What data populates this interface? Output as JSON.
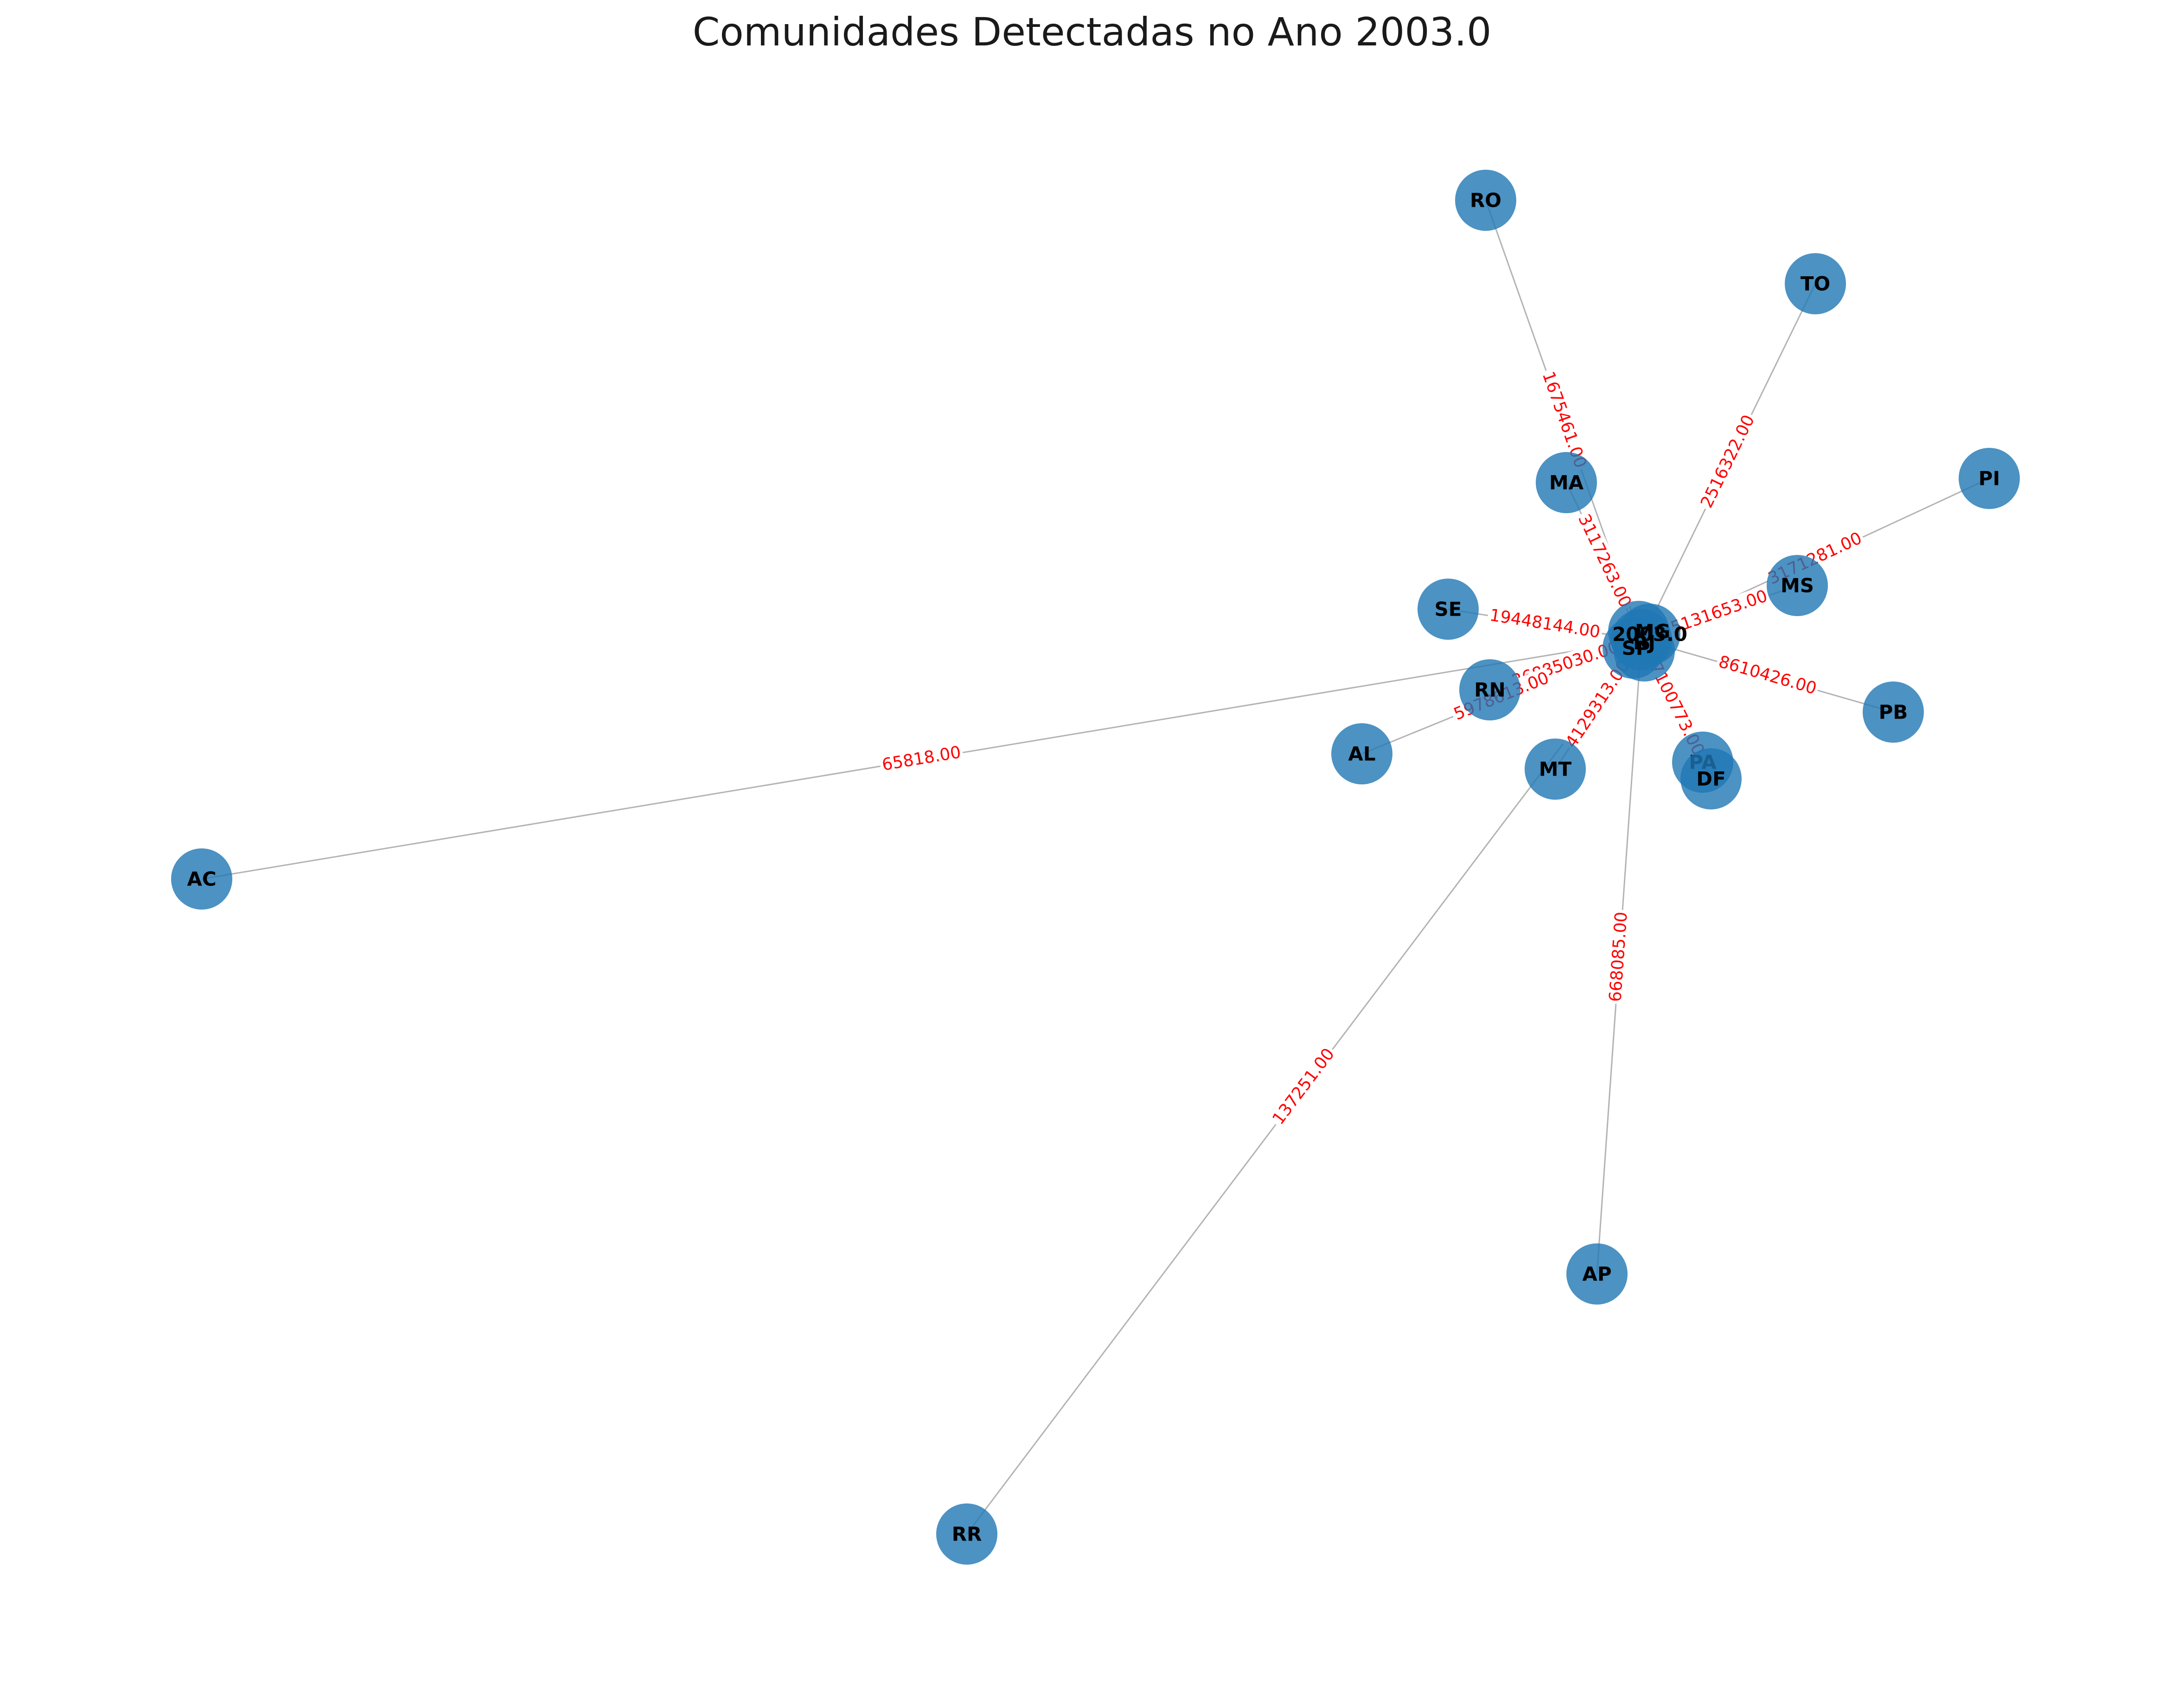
{
  "title": "Comunidades Detectadas no Ano 2003.0",
  "colors": {
    "node_fill": "#1f77b4",
    "edge": "#b3b3b3",
    "edge_label": "#ff0000",
    "node_label": "#000000"
  },
  "hub": {
    "label": "2003.0",
    "overlapping_labels": [
      "SP",
      "MG",
      "RJ"
    ]
  },
  "nodes": [
    "RO",
    "TO",
    "PI",
    "MA",
    "MS",
    "SE",
    "RN",
    "PB",
    "AL",
    "MT",
    "PA",
    "DF",
    "AC",
    "AP",
    "RR"
  ],
  "edges": [
    {
      "node": "RO",
      "label": "1675461.00"
    },
    {
      "node": "TO",
      "label": "2516322.00"
    },
    {
      "node": "PI",
      "label": "3171281.00"
    },
    {
      "node": "MA",
      "label": "3117263.00"
    },
    {
      "node": "MS",
      "label": "5131653.00"
    },
    {
      "node": "SE",
      "label": "19448144.00"
    },
    {
      "node": "RN",
      "label": "26885030.00"
    },
    {
      "node": "PB",
      "label": "8610426.00"
    },
    {
      "node": "AL",
      "label": "5978613.00"
    },
    {
      "node": "MT",
      "label": "4129313.00"
    },
    {
      "node": "PA",
      "label": "580773.00"
    },
    {
      "node": "DF",
      "label": "7100773.00"
    },
    {
      "node": "AC",
      "label": "65818.00"
    },
    {
      "node": "AP",
      "label": "668085.00"
    },
    {
      "node": "RR",
      "label": "137251.00"
    }
  ]
}
